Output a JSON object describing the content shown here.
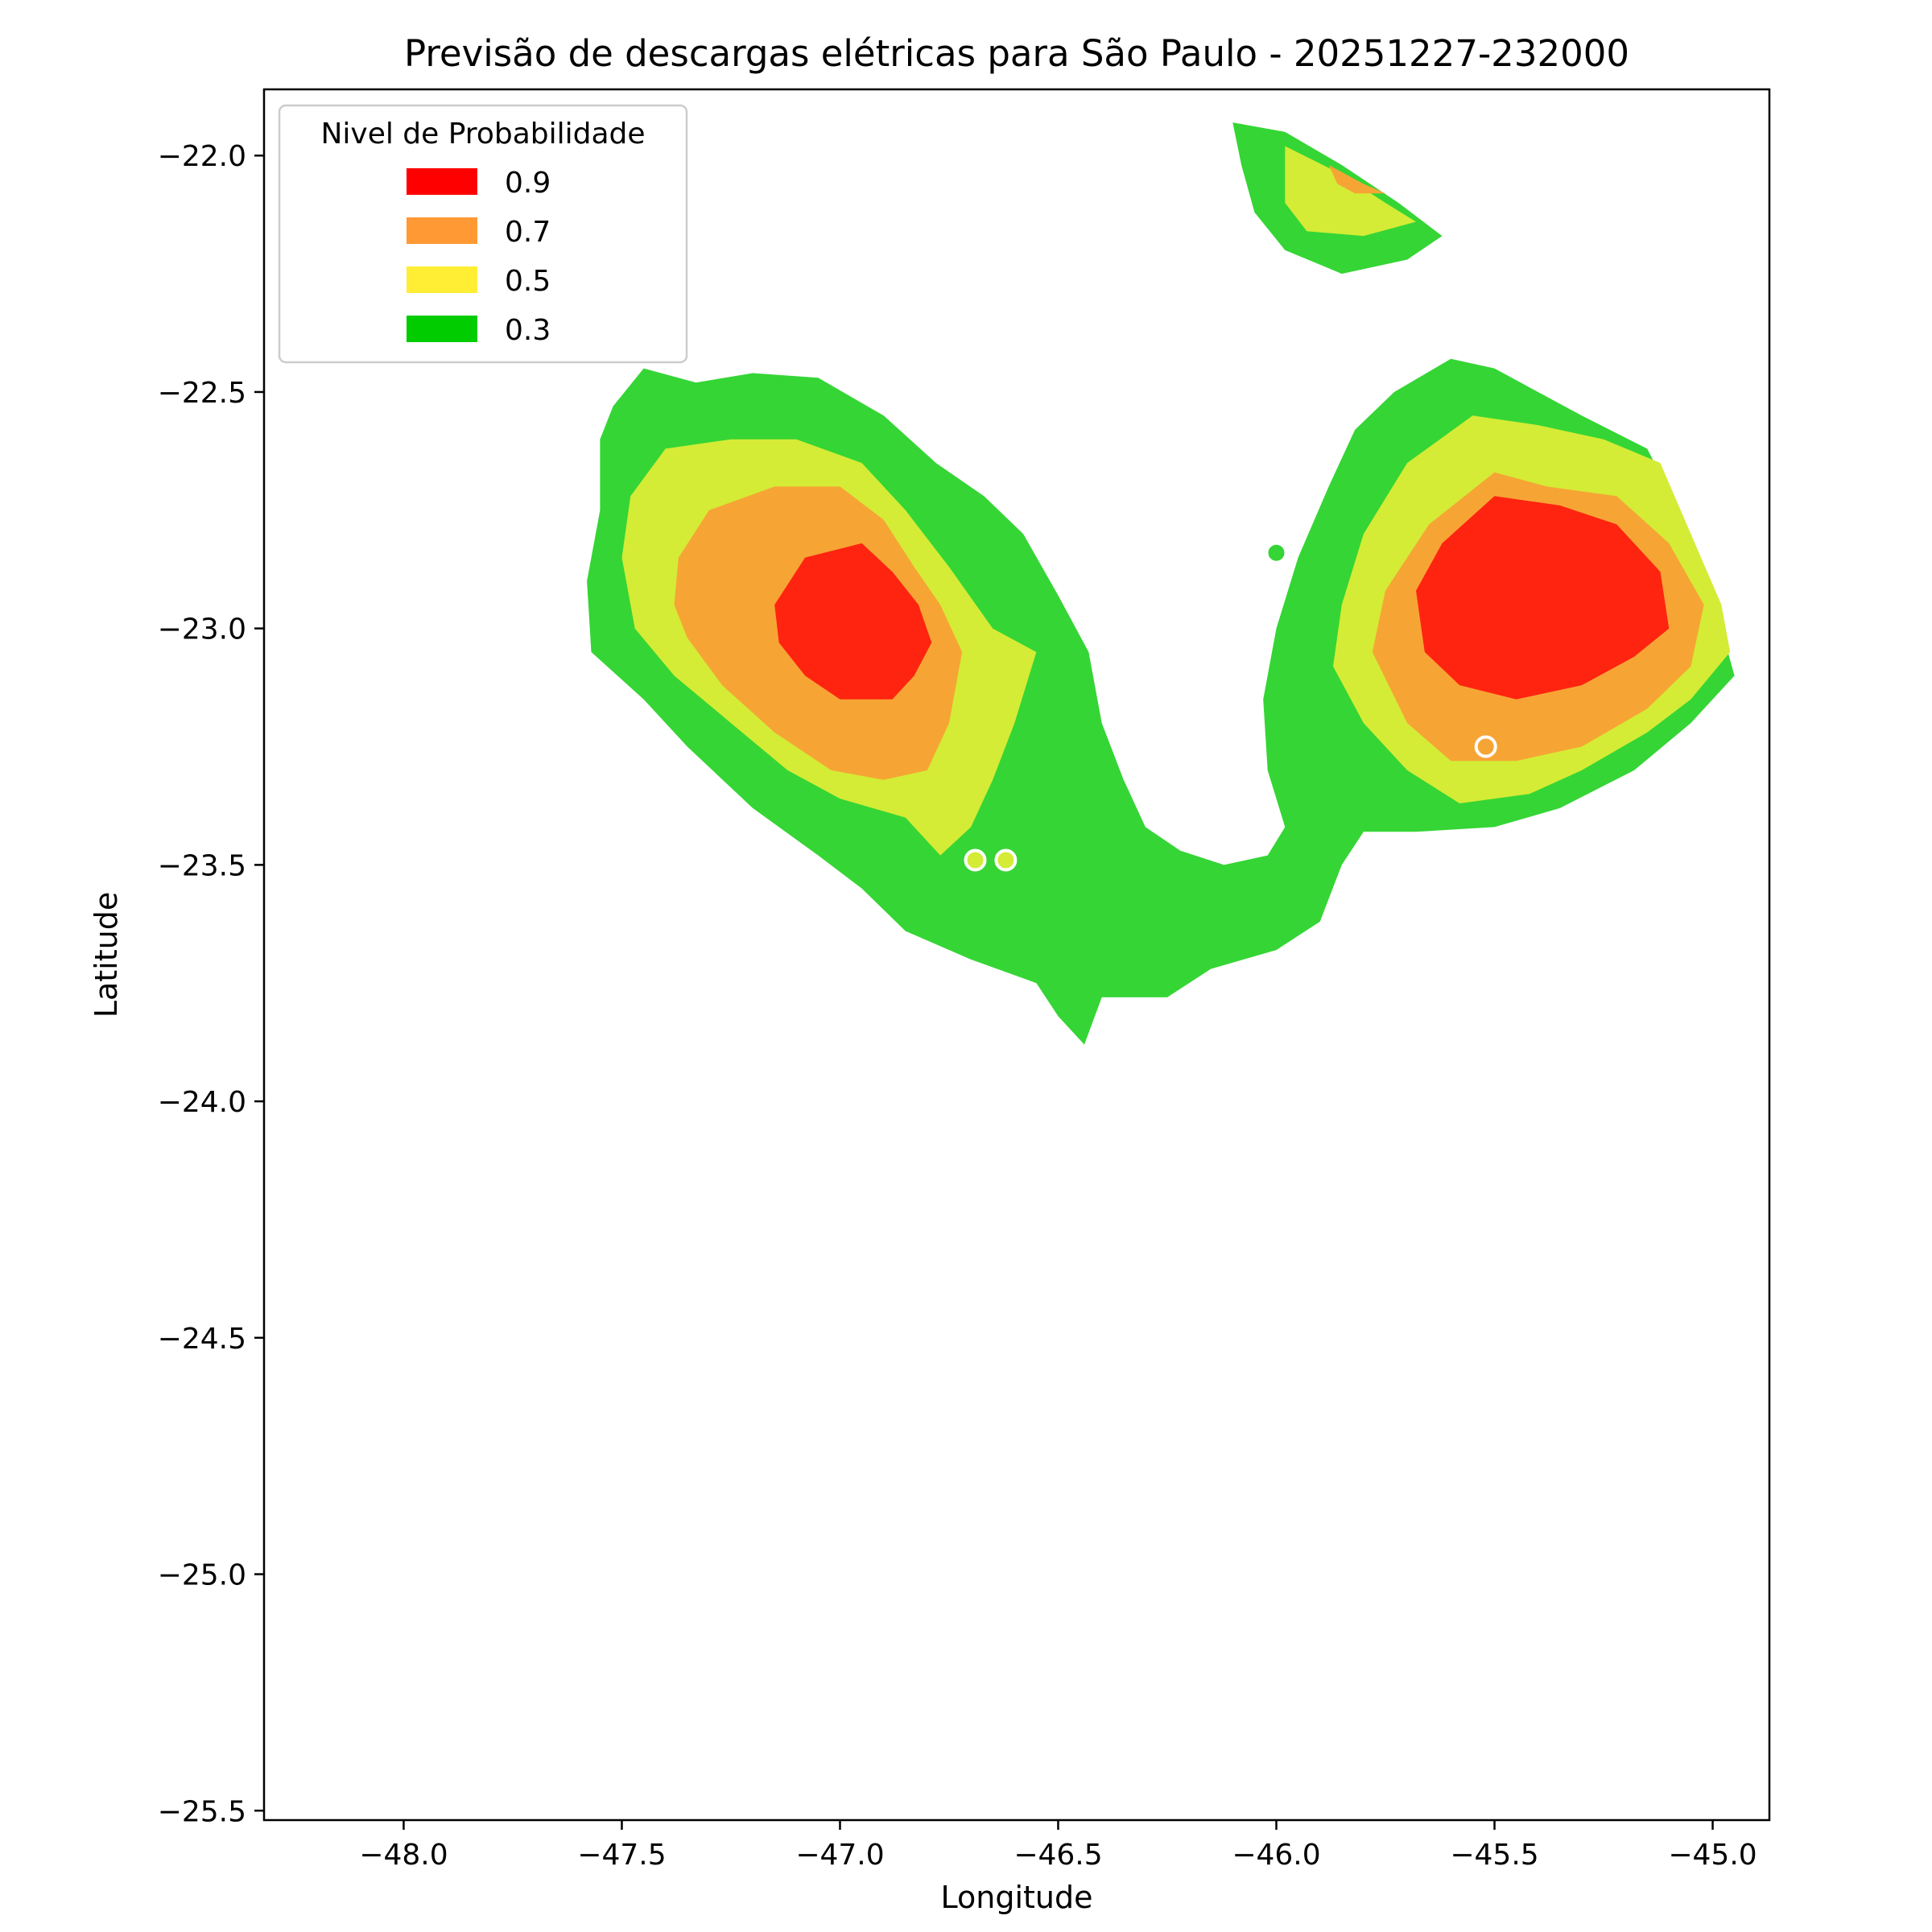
{
  "chart_data": {
    "type": "contour",
    "title": "Previsão de descargas elétricas para São Paulo - 20251227-232000",
    "xlabel": "Longitude",
    "ylabel": "Latitude",
    "xlim": [
      -48.32,
      -44.87
    ],
    "ylim": [
      -25.52,
      -21.86
    ],
    "xticks": [
      -48.0,
      -47.5,
      -47.0,
      -46.5,
      -46.0,
      -45.5,
      -45.0
    ],
    "xtick_labels": [
      "−48.0",
      "−47.5",
      "−47.0",
      "−46.5",
      "−46.0",
      "−45.5",
      "−45.0"
    ],
    "yticks": [
      -22.0,
      -22.5,
      -23.0,
      -23.5,
      -24.0,
      -24.5,
      -25.0,
      -25.5
    ],
    "ytick_labels": [
      "−22.0",
      "−22.5",
      "−23.0",
      "−23.5",
      "−24.0",
      "−24.5",
      "−25.0",
      "−25.5"
    ],
    "grid": false,
    "legend": {
      "title": "Nivel de Probabilidade",
      "placement": "upper-left",
      "entries": [
        {
          "label": "0.9",
          "color": "#ff0000"
        },
        {
          "label": "0.7",
          "color": "#ff9933"
        },
        {
          "label": "0.5",
          "color": "#ffee33"
        },
        {
          "label": "0.3",
          "color": "#00cc00"
        }
      ]
    },
    "fill_colors": {
      "0.3": "#35d535",
      "0.5": "#d4ec35",
      "0.7": "#f6a535",
      "0.9": "#ff2410"
    },
    "cells": [
      {
        "name": "west-cell",
        "levels": [
          {
            "level": "0.3",
            "polygon": [
              [
                -47.52,
                -22.53
              ],
              [
                -47.45,
                -22.45
              ],
              [
                -47.33,
                -22.48
              ],
              [
                -47.2,
                -22.46
              ],
              [
                -47.05,
                -22.47
              ],
              [
                -46.9,
                -22.55
              ],
              [
                -46.78,
                -22.65
              ],
              [
                -46.67,
                -22.72
              ],
              [
                -46.58,
                -22.8
              ],
              [
                -46.5,
                -22.93
              ],
              [
                -46.43,
                -23.05
              ],
              [
                -46.4,
                -23.2
              ],
              [
                -46.35,
                -23.32
              ],
              [
                -46.3,
                -23.42
              ],
              [
                -46.22,
                -23.47
              ],
              [
                -46.12,
                -23.5
              ],
              [
                -46.02,
                -23.48
              ],
              [
                -45.98,
                -23.42
              ],
              [
                -46.02,
                -23.3
              ],
              [
                -46.03,
                -23.15
              ],
              [
                -46.0,
                -23.0
              ],
              [
                -45.95,
                -22.85
              ],
              [
                -45.88,
                -22.7
              ],
              [
                -45.82,
                -22.58
              ],
              [
                -45.73,
                -22.5
              ],
              [
                -45.6,
                -22.43
              ],
              [
                -45.5,
                -22.45
              ],
              [
                -45.4,
                -22.5
              ],
              [
                -45.3,
                -22.55
              ],
              [
                -45.15,
                -22.62
              ],
              [
                -45.05,
                -22.8
              ],
              [
                -44.98,
                -23.0
              ],
              [
                -44.95,
                -23.1
              ],
              [
                -45.05,
                -23.2
              ],
              [
                -45.18,
                -23.3
              ],
              [
                -45.35,
                -23.38
              ],
              [
                -45.5,
                -23.42
              ],
              [
                -45.68,
                -23.43
              ],
              [
                -45.8,
                -23.43
              ],
              [
                -45.85,
                -23.5
              ],
              [
                -45.9,
                -23.62
              ],
              [
                -46.0,
                -23.68
              ],
              [
                -46.15,
                -23.72
              ],
              [
                -46.25,
                -23.78
              ],
              [
                -46.4,
                -23.78
              ],
              [
                -46.44,
                -23.88
              ],
              [
                -46.5,
                -23.82
              ],
              [
                -46.55,
                -23.75
              ],
              [
                -46.7,
                -23.7
              ],
              [
                -46.85,
                -23.64
              ],
              [
                -46.95,
                -23.55
              ],
              [
                -47.05,
                -23.48
              ],
              [
                -47.2,
                -23.38
              ],
              [
                -47.35,
                -23.25
              ],
              [
                -47.45,
                -23.15
              ],
              [
                -47.57,
                -23.05
              ],
              [
                -47.58,
                -22.9
              ],
              [
                -47.55,
                -22.75
              ],
              [
                -47.55,
                -22.6
              ]
            ]
          },
          {
            "level": "0.5",
            "polygon": [
              [
                -47.48,
                -22.72
              ],
              [
                -47.4,
                -22.62
              ],
              [
                -47.25,
                -22.6
              ],
              [
                -47.1,
                -22.6
              ],
              [
                -46.95,
                -22.65
              ],
              [
                -46.85,
                -22.75
              ],
              [
                -46.75,
                -22.87
              ],
              [
                -46.65,
                -23.0
              ],
              [
                -46.55,
                -23.05
              ],
              [
                -46.6,
                -23.2
              ],
              [
                -46.65,
                -23.32
              ],
              [
                -46.7,
                -23.42
              ],
              [
                -46.77,
                -23.48
              ],
              [
                -46.85,
                -23.4
              ],
              [
                -47.0,
                -23.36
              ],
              [
                -47.12,
                -23.3
              ],
              [
                -47.25,
                -23.2
              ],
              [
                -47.38,
                -23.1
              ],
              [
                -47.47,
                -23.0
              ],
              [
                -47.5,
                -22.85
              ]
            ]
          },
          {
            "level": "0.7",
            "polygon": [
              [
                -47.37,
                -22.85
              ],
              [
                -47.3,
                -22.75
              ],
              [
                -47.15,
                -22.7
              ],
              [
                -47.0,
                -22.7
              ],
              [
                -46.9,
                -22.77
              ],
              [
                -46.83,
                -22.87
              ],
              [
                -46.77,
                -22.95
              ],
              [
                -46.72,
                -23.05
              ],
              [
                -46.75,
                -23.2
              ],
              [
                -46.8,
                -23.3
              ],
              [
                -46.9,
                -23.32
              ],
              [
                -47.02,
                -23.3
              ],
              [
                -47.15,
                -23.22
              ],
              [
                -47.27,
                -23.12
              ],
              [
                -47.35,
                -23.02
              ],
              [
                -47.38,
                -22.95
              ]
            ]
          },
          {
            "level": "0.9",
            "polygon": [
              [
                -47.15,
                -22.95
              ],
              [
                -47.08,
                -22.85
              ],
              [
                -46.95,
                -22.82
              ],
              [
                -46.88,
                -22.88
              ],
              [
                -46.82,
                -22.95
              ],
              [
                -46.79,
                -23.03
              ],
              [
                -46.83,
                -23.1
              ],
              [
                -46.88,
                -23.15
              ],
              [
                -47.0,
                -23.15
              ],
              [
                -47.08,
                -23.1
              ],
              [
                -47.14,
                -23.03
              ]
            ]
          }
        ]
      },
      {
        "name": "east-cell",
        "levels": [
          {
            "level": "0.5",
            "polygon": [
              [
                -45.85,
                -22.95
              ],
              [
                -45.8,
                -22.8
              ],
              [
                -45.7,
                -22.65
              ],
              [
                -45.55,
                -22.55
              ],
              [
                -45.4,
                -22.57
              ],
              [
                -45.25,
                -22.6
              ],
              [
                -45.12,
                -22.65
              ],
              [
                -45.05,
                -22.8
              ],
              [
                -44.98,
                -22.95
              ],
              [
                -44.96,
                -23.05
              ],
              [
                -45.05,
                -23.15
              ],
              [
                -45.15,
                -23.22
              ],
              [
                -45.3,
                -23.3
              ],
              [
                -45.42,
                -23.35
              ],
              [
                -45.58,
                -23.37
              ],
              [
                -45.7,
                -23.3
              ],
              [
                -45.8,
                -23.2
              ],
              [
                -45.87,
                -23.08
              ]
            ]
          },
          {
            "level": "0.7",
            "polygon": [
              [
                -45.78,
                -23.05
              ],
              [
                -45.75,
                -22.92
              ],
              [
                -45.65,
                -22.78
              ],
              [
                -45.5,
                -22.67
              ],
              [
                -45.38,
                -22.7
              ],
              [
                -45.22,
                -22.72
              ],
              [
                -45.1,
                -22.82
              ],
              [
                -45.02,
                -22.95
              ],
              [
                -45.05,
                -23.08
              ],
              [
                -45.15,
                -23.17
              ],
              [
                -45.3,
                -23.25
              ],
              [
                -45.45,
                -23.28
              ],
              [
                -45.6,
                -23.28
              ],
              [
                -45.7,
                -23.2
              ]
            ]
          },
          {
            "level": "0.9",
            "polygon": [
              [
                -45.68,
                -22.92
              ],
              [
                -45.62,
                -22.82
              ],
              [
                -45.5,
                -22.72
              ],
              [
                -45.35,
                -22.74
              ],
              [
                -45.22,
                -22.78
              ],
              [
                -45.12,
                -22.88
              ],
              [
                -45.1,
                -23.0
              ],
              [
                -45.18,
                -23.06
              ],
              [
                -45.3,
                -23.12
              ],
              [
                -45.45,
                -23.15
              ],
              [
                -45.58,
                -23.12
              ],
              [
                -45.66,
                -23.05
              ]
            ]
          }
        ]
      },
      {
        "name": "north-cell",
        "levels": [
          {
            "level": "0.3",
            "polygon": [
              [
                -46.1,
                -21.93
              ],
              [
                -45.98,
                -21.95
              ],
              [
                -45.85,
                -22.02
              ],
              [
                -45.72,
                -22.1
              ],
              [
                -45.62,
                -22.17
              ],
              [
                -45.7,
                -22.22
              ],
              [
                -45.85,
                -22.25
              ],
              [
                -45.98,
                -22.2
              ],
              [
                -46.05,
                -22.12
              ],
              [
                -46.08,
                -22.02
              ]
            ]
          },
          {
            "level": "0.5",
            "polygon": [
              [
                -45.98,
                -21.98
              ],
              [
                -45.85,
                -22.04
              ],
              [
                -45.75,
                -22.1
              ],
              [
                -45.68,
                -22.14
              ],
              [
                -45.8,
                -22.17
              ],
              [
                -45.93,
                -22.16
              ],
              [
                -45.98,
                -22.1
              ]
            ]
          },
          {
            "level": "0.7",
            "polygon": [
              [
                -45.88,
                -22.02
              ],
              [
                -45.8,
                -22.06
              ],
              [
                -45.75,
                -22.08
              ],
              [
                -45.82,
                -22.08
              ],
              [
                -45.86,
                -22.06
              ]
            ]
          }
        ]
      }
    ],
    "markers": [
      {
        "name": "yellow-dot-1",
        "x": -46.69,
        "y": -23.49,
        "level": "0.5"
      },
      {
        "name": "yellow-dot-2",
        "x": -46.62,
        "y": -23.49,
        "level": "0.5"
      },
      {
        "name": "green-dot",
        "x": -46.0,
        "y": -22.84,
        "level": "0.3"
      },
      {
        "name": "orange-dot",
        "x": -45.52,
        "y": -23.25,
        "level": "0.7"
      }
    ]
  }
}
